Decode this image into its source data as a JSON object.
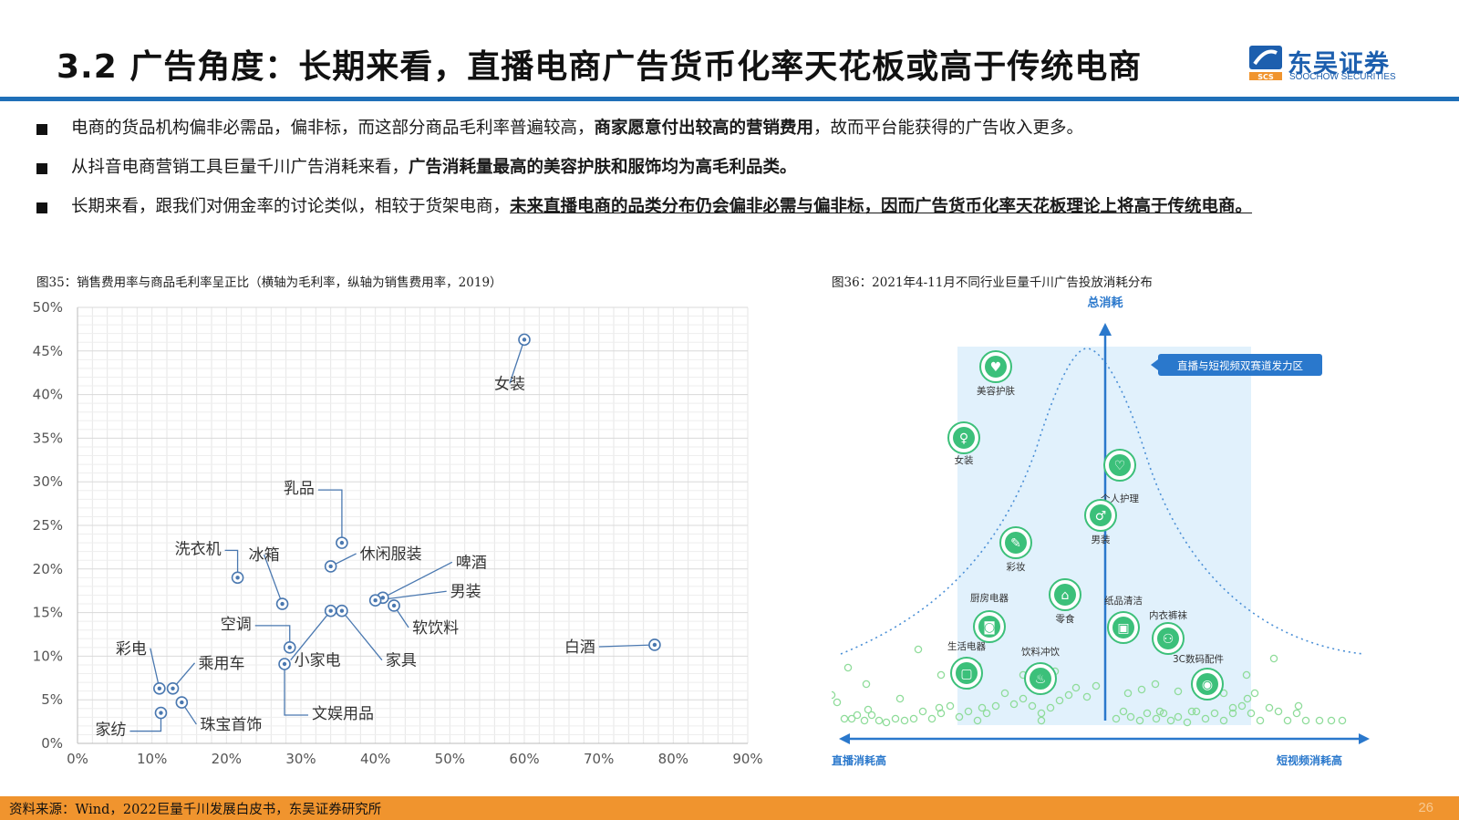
{
  "header": {
    "title": "3.2 广告角度：长期来看，直播电商广告货币化率天花板或高于传统电商",
    "logo_name": "东吴证券",
    "logo_en": "SOOCHOW SECURITIES",
    "logo_mark": "SCS"
  },
  "bullets": [
    {
      "pre": "电商的货品机构偏非必需品，偏非标，而这部分商品毛利率普遍较高，",
      "bold": "商家愿意付出较高的营销费用",
      "post": "，故而平台能获得的广告收入更多。"
    },
    {
      "pre": "从抖音电商营销工具巨量千川广告消耗来看，",
      "bold": "广告消耗量最高的美容护肤和服饰均为高毛利品类。",
      "post": ""
    },
    {
      "pre": "长期来看，跟我们对佣金率的讨论类似，相较于货架电商，",
      "bold": "未来直播电商的品类分布仍会偏非必需与偏非标，因而广告货币化率天花板理论上将高于传统电商。",
      "post": ""
    }
  ],
  "figure35_caption": "图35：销售费用率与商品毛利率呈正比（横轴为毛利率，纵轴为销售费用率，2019）",
  "figure36_caption": "图36：2021年4-11月不同行业巨量千川广告投放消耗分布",
  "chart_data": [
    {
      "type": "scatter",
      "xlim": [
        0,
        90
      ],
      "ylim": [
        0,
        50
      ],
      "xticks": [
        "0%",
        "10%",
        "20%",
        "30%",
        "40%",
        "50%",
        "60%",
        "70%",
        "80%",
        "90%"
      ],
      "yticks": [
        "0%",
        "5%",
        "10%",
        "15%",
        "20%",
        "25%",
        "30%",
        "35%",
        "40%",
        "45%",
        "50%"
      ],
      "grid": true,
      "points": [
        {
          "label": "女装",
          "x": 60.0,
          "y": 46.3
        },
        {
          "label": "乳品",
          "x": 35.5,
          "y": 23.0
        },
        {
          "label": "休闲服装",
          "x": 34.0,
          "y": 20.3
        },
        {
          "label": "洗衣机",
          "x": 21.5,
          "y": 19.0
        },
        {
          "label": "冰箱",
          "x": 27.5,
          "y": 16.0
        },
        {
          "label": "啤酒",
          "x": 41.0,
          "y": 16.7
        },
        {
          "label": "男装",
          "x": 40.0,
          "y": 16.4
        },
        {
          "label": "软饮料",
          "x": 42.5,
          "y": 15.8
        },
        {
          "label": "小家电",
          "x": 34.0,
          "y": 15.2
        },
        {
          "label": "家具",
          "x": 35.5,
          "y": 15.2
        },
        {
          "label": "空调",
          "x": 28.5,
          "y": 11.0
        },
        {
          "label": "白酒",
          "x": 77.5,
          "y": 11.3
        },
        {
          "label": "文娱用品",
          "x": 27.8,
          "y": 9.1
        },
        {
          "label": "彩电",
          "x": 11.0,
          "y": 6.3
        },
        {
          "label": "乘用车",
          "x": 12.8,
          "y": 6.3
        },
        {
          "label": "珠宝首饰",
          "x": 14.0,
          "y": 4.7
        },
        {
          "label": "家纺",
          "x": 11.2,
          "y": 3.5
        }
      ]
    },
    {
      "type": "scatter",
      "title": "总消耗",
      "xlabel_left": "直播消耗高",
      "xlabel_right": "短视频消耗高",
      "zone_label": "直播与短视频双赛道发力区",
      "categories": [
        {
          "label": "美容护肤",
          "icon": "beauty-icon"
        },
        {
          "label": "女装",
          "icon": "dress-icon"
        },
        {
          "label": "个人护理",
          "icon": "personal-care-icon"
        },
        {
          "label": "男装",
          "icon": "menswear-icon"
        },
        {
          "label": "彩妆",
          "icon": "makeup-icon"
        },
        {
          "label": "零食",
          "icon": "snack-icon"
        },
        {
          "label": "厨房电器",
          "icon": "kitchen-appliance-icon"
        },
        {
          "label": "纸品清洁",
          "icon": "paper-cleaning-icon"
        },
        {
          "label": "内衣裤袜",
          "icon": "underwear-icon"
        },
        {
          "label": "生活电器",
          "icon": "home-appliance-icon"
        },
        {
          "label": "饮料冲饮",
          "icon": "beverage-icon"
        },
        {
          "label": "3C数码配件",
          "icon": "camera-icon"
        }
      ]
    }
  ],
  "footer": {
    "source": "资料来源：Wind，2022巨量千川发展白皮书，东吴证券研究所",
    "page": "26"
  },
  "colors": {
    "accent_blue": "#1f6fb8",
    "footer_orange": "#f0942e",
    "marker": "#3a6ea5",
    "green": "#3cc07a"
  }
}
